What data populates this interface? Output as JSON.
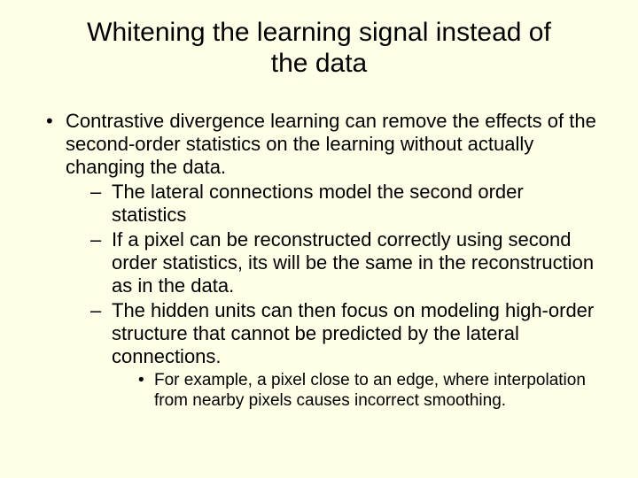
{
  "background_color": "#ffffe8",
  "text_color": "#000000",
  "font_family": "Arial",
  "title": {
    "text": "Whitening the learning signal instead of the data",
    "fontsize": 30
  },
  "bullets": {
    "level1_fontsize": 22,
    "level2_fontsize": 22,
    "level3_fontsize": 19,
    "level1_marker": "•",
    "level2_marker": "–",
    "level3_marker": "•",
    "item1": "Contrastive divergence learning can remove the effects of the second-order statistics on the learning without actually changing the data.",
    "item1_sub1": "The lateral connections model the second order statistics",
    "item1_sub2": "If a pixel can be reconstructed correctly using second order statistics, its will be the same in the reconstruction as in the data.",
    "item1_sub3": "The hidden units can then focus on modeling high-order structure that cannot be predicted by the lateral connections.",
    "item1_sub3_sub1": "For example, a pixel close to an edge, where interpolation from nearby pixels causes incorrect smoothing."
  }
}
